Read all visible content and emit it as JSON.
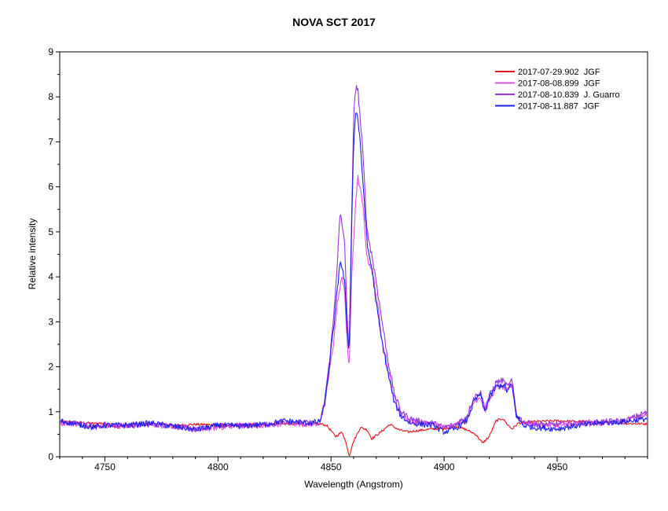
{
  "chart_data": {
    "type": "line",
    "title": "NOVA SCT 2017",
    "xlabel": "Wavelength (Angstrom)",
    "ylabel": "Relative intensity",
    "xlim": [
      4730,
      4990
    ],
    "ylim": [
      0,
      9
    ],
    "x_ticks": [
      4750,
      4800,
      4850,
      4900,
      4950
    ],
    "y_ticks": [
      0,
      1,
      2,
      3,
      4,
      5,
      6,
      7,
      8,
      9
    ],
    "grid": false,
    "legend_position": "top-right",
    "series": [
      {
        "name": "2017-07-29.902  JGF",
        "color": "#e8101a",
        "points": [
          [
            4730,
            0.78
          ],
          [
            4740,
            0.76
          ],
          [
            4745,
            0.74
          ],
          [
            4750,
            0.75
          ],
          [
            4755,
            0.64
          ],
          [
            4760,
            0.72
          ],
          [
            4770,
            0.73
          ],
          [
            4780,
            0.7
          ],
          [
            4790,
            0.72
          ],
          [
            4800,
            0.71
          ],
          [
            4810,
            0.7
          ],
          [
            4820,
            0.72
          ],
          [
            4830,
            0.73
          ],
          [
            4840,
            0.72
          ],
          [
            4845,
            0.73
          ],
          [
            4848,
            0.7
          ],
          [
            4852,
            0.45
          ],
          [
            4855,
            0.55
          ],
          [
            4857,
            0.25
          ],
          [
            4858,
            0.02
          ],
          [
            4860,
            0.35
          ],
          [
            4863,
            0.65
          ],
          [
            4866,
            0.6
          ],
          [
            4868,
            0.4
          ],
          [
            4872,
            0.55
          ],
          [
            4876,
            0.72
          ],
          [
            4880,
            0.6
          ],
          [
            4884,
            0.55
          ],
          [
            4888,
            0.58
          ],
          [
            4895,
            0.62
          ],
          [
            4900,
            0.63
          ],
          [
            4905,
            0.68
          ],
          [
            4910,
            0.6
          ],
          [
            4914,
            0.5
          ],
          [
            4917,
            0.3
          ],
          [
            4920,
            0.45
          ],
          [
            4923,
            0.8
          ],
          [
            4926,
            0.85
          ],
          [
            4928,
            0.72
          ],
          [
            4930,
            0.62
          ],
          [
            4933,
            0.75
          ],
          [
            4940,
            0.78
          ],
          [
            4950,
            0.8
          ],
          [
            4960,
            0.78
          ],
          [
            4970,
            0.77
          ],
          [
            4980,
            0.74
          ],
          [
            4990,
            0.73
          ]
        ]
      },
      {
        "name": "2017-08-08.899  JGF",
        "color": "#e050e0",
        "points": [
          [
            4730,
            0.75
          ],
          [
            4740,
            0.73
          ],
          [
            4745,
            0.68
          ],
          [
            4750,
            0.7
          ],
          [
            4760,
            0.68
          ],
          [
            4770,
            0.72
          ],
          [
            4780,
            0.68
          ],
          [
            4790,
            0.6
          ],
          [
            4800,
            0.65
          ],
          [
            4810,
            0.7
          ],
          [
            4820,
            0.68
          ],
          [
            4830,
            0.75
          ],
          [
            4840,
            0.72
          ],
          [
            4845,
            0.74
          ],
          [
            4847,
            1.1
          ],
          [
            4849,
            1.8
          ],
          [
            4851,
            2.5
          ],
          [
            4853,
            3.5
          ],
          [
            4855,
            4.0
          ],
          [
            4856,
            3.7
          ],
          [
            4857,
            2.6
          ],
          [
            4858,
            1.95
          ],
          [
            4859,
            3.8
          ],
          [
            4861,
            5.8
          ],
          [
            4862,
            6.2
          ],
          [
            4864,
            5.6
          ],
          [
            4866,
            4.4
          ],
          [
            4868,
            4.2
          ],
          [
            4870,
            3.6
          ],
          [
            4872,
            2.8
          ],
          [
            4875,
            2.0
          ],
          [
            4878,
            1.3
          ],
          [
            4881,
            0.95
          ],
          [
            4885,
            0.8
          ],
          [
            4890,
            0.75
          ],
          [
            4895,
            0.72
          ],
          [
            4900,
            0.65
          ],
          [
            4905,
            0.7
          ],
          [
            4910,
            0.85
          ],
          [
            4913,
            1.2
          ],
          [
            4916,
            1.35
          ],
          [
            4918,
            1.0
          ],
          [
            4920,
            1.25
          ],
          [
            4923,
            1.55
          ],
          [
            4926,
            1.55
          ],
          [
            4928,
            1.45
          ],
          [
            4930,
            1.6
          ],
          [
            4932,
            0.9
          ],
          [
            4935,
            0.75
          ],
          [
            4940,
            0.72
          ],
          [
            4950,
            0.7
          ],
          [
            4960,
            0.72
          ],
          [
            4970,
            0.75
          ],
          [
            4980,
            0.78
          ],
          [
            4990,
            0.95
          ]
        ]
      },
      {
        "name": "2017-08-10.839  J. Guarro",
        "color": "#9932e0",
        "points": [
          [
            4730,
            0.78
          ],
          [
            4740,
            0.72
          ],
          [
            4745,
            0.68
          ],
          [
            4750,
            0.7
          ],
          [
            4760,
            0.7
          ],
          [
            4770,
            0.72
          ],
          [
            4780,
            0.68
          ],
          [
            4790,
            0.62
          ],
          [
            4800,
            0.68
          ],
          [
            4810,
            0.7
          ],
          [
            4820,
            0.7
          ],
          [
            4830,
            0.78
          ],
          [
            4840,
            0.75
          ],
          [
            4845,
            0.75
          ],
          [
            4847,
            1.2
          ],
          [
            4849,
            2.0
          ],
          [
            4851,
            3.0
          ],
          [
            4853,
            4.5
          ],
          [
            4854,
            5.4
          ],
          [
            4856,
            4.8
          ],
          [
            4857,
            3.2
          ],
          [
            4858,
            2.4
          ],
          [
            4859,
            5.0
          ],
          [
            4860,
            7.5
          ],
          [
            4861,
            8.3
          ],
          [
            4862,
            8.1
          ],
          [
            4864,
            6.8
          ],
          [
            4866,
            5.0
          ],
          [
            4868,
            4.5
          ],
          [
            4870,
            3.9
          ],
          [
            4872,
            3.2
          ],
          [
            4875,
            2.2
          ],
          [
            4878,
            1.4
          ],
          [
            4881,
            1.0
          ],
          [
            4885,
            0.85
          ],
          [
            4890,
            0.78
          ],
          [
            4895,
            0.75
          ],
          [
            4900,
            0.65
          ],
          [
            4905,
            0.72
          ],
          [
            4910,
            0.9
          ],
          [
            4913,
            1.3
          ],
          [
            4916,
            1.45
          ],
          [
            4918,
            1.1
          ],
          [
            4920,
            1.35
          ],
          [
            4923,
            1.65
          ],
          [
            4926,
            1.7
          ],
          [
            4928,
            1.55
          ],
          [
            4930,
            1.7
          ],
          [
            4932,
            0.95
          ],
          [
            4935,
            0.78
          ],
          [
            4940,
            0.72
          ],
          [
            4950,
            0.72
          ],
          [
            4960,
            0.75
          ],
          [
            4970,
            0.78
          ],
          [
            4980,
            0.8
          ],
          [
            4990,
            1.0
          ]
        ]
      },
      {
        "name": "2017-08-11.887  JGF",
        "color": "#1a22e6",
        "points": [
          [
            4730,
            0.8
          ],
          [
            4740,
            0.7
          ],
          [
            4745,
            0.65
          ],
          [
            4750,
            0.7
          ],
          [
            4760,
            0.7
          ],
          [
            4770,
            0.75
          ],
          [
            4780,
            0.68
          ],
          [
            4790,
            0.6
          ],
          [
            4800,
            0.7
          ],
          [
            4810,
            0.68
          ],
          [
            4820,
            0.72
          ],
          [
            4830,
            0.8
          ],
          [
            4840,
            0.75
          ],
          [
            4845,
            0.78
          ],
          [
            4847,
            1.1
          ],
          [
            4849,
            1.9
          ],
          [
            4851,
            2.8
          ],
          [
            4853,
            3.8
          ],
          [
            4854,
            4.4
          ],
          [
            4856,
            3.9
          ],
          [
            4857,
            2.9
          ],
          [
            4858,
            2.3
          ],
          [
            4859,
            4.8
          ],
          [
            4860,
            7.0
          ],
          [
            4861,
            7.7
          ],
          [
            4862,
            7.5
          ],
          [
            4864,
            6.2
          ],
          [
            4866,
            4.7
          ],
          [
            4868,
            4.2
          ],
          [
            4870,
            3.4
          ],
          [
            4872,
            2.7
          ],
          [
            4875,
            1.9
          ],
          [
            4878,
            1.2
          ],
          [
            4881,
            0.9
          ],
          [
            4885,
            0.75
          ],
          [
            4890,
            0.72
          ],
          [
            4895,
            0.7
          ],
          [
            4900,
            0.55
          ],
          [
            4905,
            0.62
          ],
          [
            4910,
            0.8
          ],
          [
            4913,
            1.2
          ],
          [
            4916,
            1.4
          ],
          [
            4918,
            1.0
          ],
          [
            4920,
            1.3
          ],
          [
            4923,
            1.55
          ],
          [
            4926,
            1.6
          ],
          [
            4928,
            1.45
          ],
          [
            4930,
            1.6
          ],
          [
            4932,
            0.9
          ],
          [
            4935,
            0.7
          ],
          [
            4940,
            0.65
          ],
          [
            4950,
            0.62
          ],
          [
            4960,
            0.7
          ],
          [
            4970,
            0.75
          ],
          [
            4980,
            0.78
          ],
          [
            4990,
            0.85
          ]
        ]
      }
    ]
  }
}
